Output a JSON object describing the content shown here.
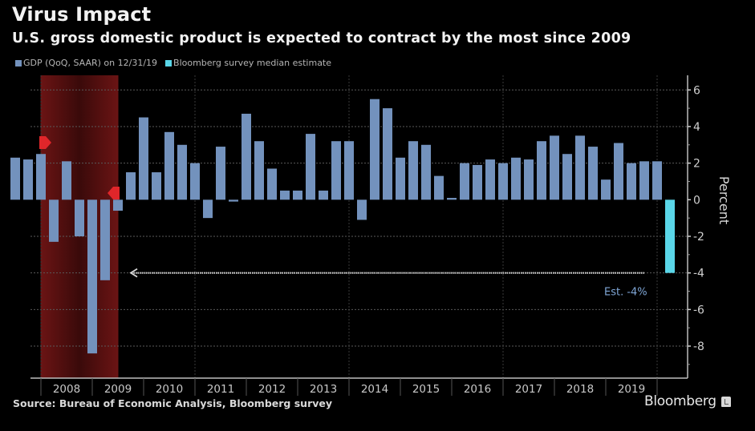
{
  "header": {
    "title": "Virus Impact",
    "subtitle": "U.S. gross domestic product is expected to contract by the most since 2009"
  },
  "footer": {
    "source": "Source: Bureau of Economic Analysis, Bloomberg survey",
    "brand": "Bloomberg",
    "brand_icon": "bloomberg-logo-icon"
  },
  "chart_data": {
    "type": "bar",
    "title": "Virus Impact",
    "subtitle": "U.S. gross domestic product is expected to contract by the most since 2009",
    "xlabel": "",
    "ylabel": "Percent",
    "ylim": [
      -9.75,
      6.8
    ],
    "yticks": [
      6,
      4,
      2,
      0,
      -2,
      -4,
      -6,
      -8
    ],
    "ytick_labels": [
      "6",
      "4",
      "2",
      "0",
      "-2",
      "-4",
      "-6",
      "-8"
    ],
    "xlim_quarters": [
      "2007Q1",
      "2020Q2"
    ],
    "xtick_labels": [
      "2008",
      "2009",
      "2010",
      "2011",
      "2012",
      "2013",
      "2014",
      "2015",
      "2016",
      "2017",
      "2018",
      "2019"
    ],
    "grid": true,
    "legend_position": "top-left",
    "y_axis_side": "right",
    "series": [
      {
        "name": "GDP (QoQ, SAAR) on 12/31/19",
        "color": "#7392bd",
        "categories": [
          "2007Q2",
          "2007Q3",
          "2007Q4",
          "2008Q1",
          "2008Q2",
          "2008Q3",
          "2008Q4",
          "2009Q1",
          "2009Q2",
          "2009Q3",
          "2009Q4",
          "2010Q1",
          "2010Q2",
          "2010Q3",
          "2010Q4",
          "2011Q1",
          "2011Q2",
          "2011Q3",
          "2011Q4",
          "2012Q1",
          "2012Q2",
          "2012Q3",
          "2012Q4",
          "2013Q1",
          "2013Q2",
          "2013Q3",
          "2013Q4",
          "2014Q1",
          "2014Q2",
          "2014Q3",
          "2014Q4",
          "2015Q1",
          "2015Q2",
          "2015Q3",
          "2015Q4",
          "2016Q1",
          "2016Q2",
          "2016Q3",
          "2016Q4",
          "2017Q1",
          "2017Q2",
          "2017Q3",
          "2017Q4",
          "2018Q1",
          "2018Q2",
          "2018Q3",
          "2018Q4",
          "2019Q1",
          "2019Q2",
          "2019Q3",
          "2019Q4"
        ],
        "values": [
          2.3,
          2.2,
          2.5,
          -2.3,
          2.1,
          -2.0,
          -8.4,
          -4.4,
          -0.6,
          1.5,
          4.5,
          1.5,
          3.7,
          3.0,
          2.0,
          -1.0,
          2.9,
          -0.1,
          4.7,
          3.2,
          1.7,
          0.5,
          0.5,
          3.6,
          0.5,
          3.2,
          3.2,
          -1.1,
          5.5,
          5.0,
          2.3,
          3.2,
          3.0,
          1.3,
          0.1,
          2.0,
          1.9,
          2.2,
          2.0,
          2.3,
          2.2,
          3.2,
          3.5,
          2.5,
          3.5,
          2.9,
          1.1,
          3.1,
          2.0,
          2.1,
          2.1
        ]
      },
      {
        "name": "Bloomberg survey median estimate",
        "color": "#5ad6e8",
        "categories": [
          "2020Q1"
        ],
        "values": [
          -4.0
        ]
      }
    ],
    "shaded_regions": [
      {
        "label": "Recession",
        "start": "2007Q4",
        "end": "2009Q2",
        "color": "#6b1414"
      }
    ],
    "markers": [
      {
        "label": "recession-start-marker",
        "at": "2007Q4",
        "color": "#e0262a"
      },
      {
        "label": "recession-end-marker",
        "at": "2009Q2",
        "color": "#e0262a"
      }
    ],
    "annotations": [
      {
        "text": "Est. -4%",
        "at": "2020Q1",
        "value": -4.0,
        "arrow_from": "2020Q1",
        "arrow_to": "2009Q3"
      }
    ]
  }
}
